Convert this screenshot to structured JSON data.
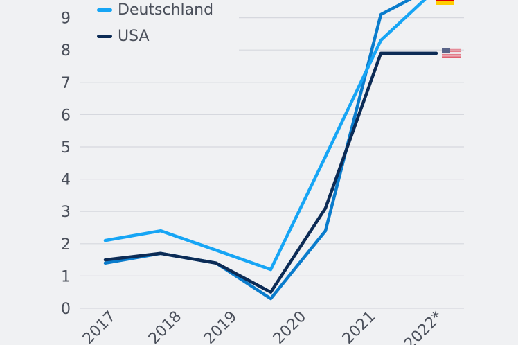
{
  "chart_data": {
    "type": "line",
    "x": [
      "",
      "",
      "",
      "",
      "",
      "",
      ""
    ],
    "tick_labels": [
      "2017",
      "2018",
      "2019",
      "2020",
      "2021",
      "2022*"
    ],
    "ylim": [
      0,
      9
    ],
    "yticks": [
      0,
      1,
      2,
      3,
      4,
      5,
      6,
      7,
      8,
      9
    ],
    "grid": true,
    "legend_placement": "top-left",
    "series": [
      {
        "name": "",
        "color": "#0a7ccc",
        "values": [
          1.4,
          1.7,
          1.4,
          0.3,
          2.4,
          9.1,
          10.0
        ]
      },
      {
        "name": "Deutschland",
        "color": "#16a5f5",
        "values": [
          2.1,
          2.4,
          1.8,
          1.2,
          4.7,
          8.3,
          9.9
        ],
        "flag": "germany-flag"
      },
      {
        "name": "USA",
        "color": "#0c2b55",
        "values": [
          1.5,
          1.7,
          1.4,
          0.5,
          3.1,
          7.9,
          7.9
        ],
        "flag": "usa-flag"
      }
    ]
  }
}
